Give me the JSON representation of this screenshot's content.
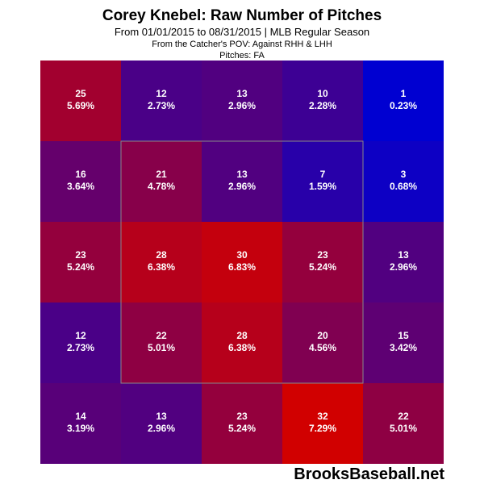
{
  "title": "Corey Knebel: Raw Number of Pitches",
  "subtitle": "From 01/01/2015 to 08/31/2015 | MLB Regular Season",
  "pov_line": "From the Catcher's POV:  Against RHH & LHH",
  "pitches_line": "Pitches:  FA",
  "watermark": "BrooksBaseball.net",
  "chart_data": {
    "type": "heatmap",
    "rows": 5,
    "cols": 5,
    "counts": [
      [
        25,
        12,
        13,
        10,
        1
      ],
      [
        16,
        21,
        13,
        7,
        3
      ],
      [
        23,
        28,
        30,
        23,
        13
      ],
      [
        12,
        22,
        28,
        20,
        15
      ],
      [
        14,
        13,
        23,
        32,
        22
      ]
    ],
    "percents": [
      [
        "5.69%",
        "2.73%",
        "2.96%",
        "2.28%",
        "0.23%"
      ],
      [
        "3.64%",
        "4.78%",
        "2.96%",
        "1.59%",
        "0.68%"
      ],
      [
        "5.24%",
        "6.38%",
        "6.83%",
        "5.24%",
        "2.96%"
      ],
      [
        "2.73%",
        "5.01%",
        "6.38%",
        "4.56%",
        "3.42%"
      ],
      [
        "3.19%",
        "2.96%",
        "5.24%",
        "7.29%",
        "5.01%"
      ]
    ],
    "color_low": "#0000ff",
    "color_high": "#ff0000",
    "strike_zone": "inner 3x3 outlined",
    "zone_outline_color": "#888888"
  }
}
